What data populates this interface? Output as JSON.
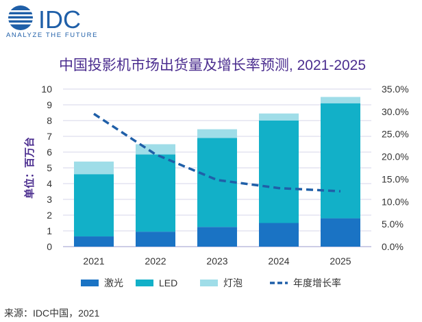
{
  "logo": {
    "brand": "IDC",
    "tagline": "ANALYZE THE FUTURE",
    "color": "#1f5fa8"
  },
  "source": "来源：IDC中国，2021",
  "chart_data": {
    "type": "bar",
    "stacked": true,
    "title": "中国投影机市场出货量及增长率预测, 2021-2025",
    "ylabel": "单位：百万台",
    "xlabel": "",
    "categories": [
      "2021",
      "2022",
      "2023",
      "2024",
      "2025"
    ],
    "ylim": [
      0,
      10
    ],
    "y_ticks": [
      "0",
      "1",
      "2",
      "3",
      "4",
      "5",
      "6",
      "7",
      "8",
      "9",
      "10"
    ],
    "y2lim": [
      0,
      35
    ],
    "y2_ticks": [
      "0.0%",
      "5.0%",
      "10.0%",
      "15.0%",
      "20.0%",
      "25.0%",
      "30.0%",
      "35.0%"
    ],
    "grid": true,
    "legend_position": "bottom",
    "series": [
      {
        "name": "激光",
        "values": [
          0.65,
          0.95,
          1.25,
          1.5,
          1.8
        ],
        "color": "#1a73c4",
        "axis": "left"
      },
      {
        "name": "LED",
        "values": [
          3.95,
          4.9,
          5.65,
          6.5,
          7.3
        ],
        "color": "#12b0c8",
        "axis": "left"
      },
      {
        "name": "灯泡",
        "values": [
          0.8,
          0.65,
          0.55,
          0.45,
          0.4
        ],
        "color": "#9fdde8",
        "axis": "left"
      },
      {
        "name": "年度增长率",
        "type": "line",
        "dashed": true,
        "values": [
          29.5,
          20.5,
          14.8,
          13.0,
          12.3
        ],
        "color": "#1f5fa8",
        "axis": "right"
      }
    ]
  }
}
